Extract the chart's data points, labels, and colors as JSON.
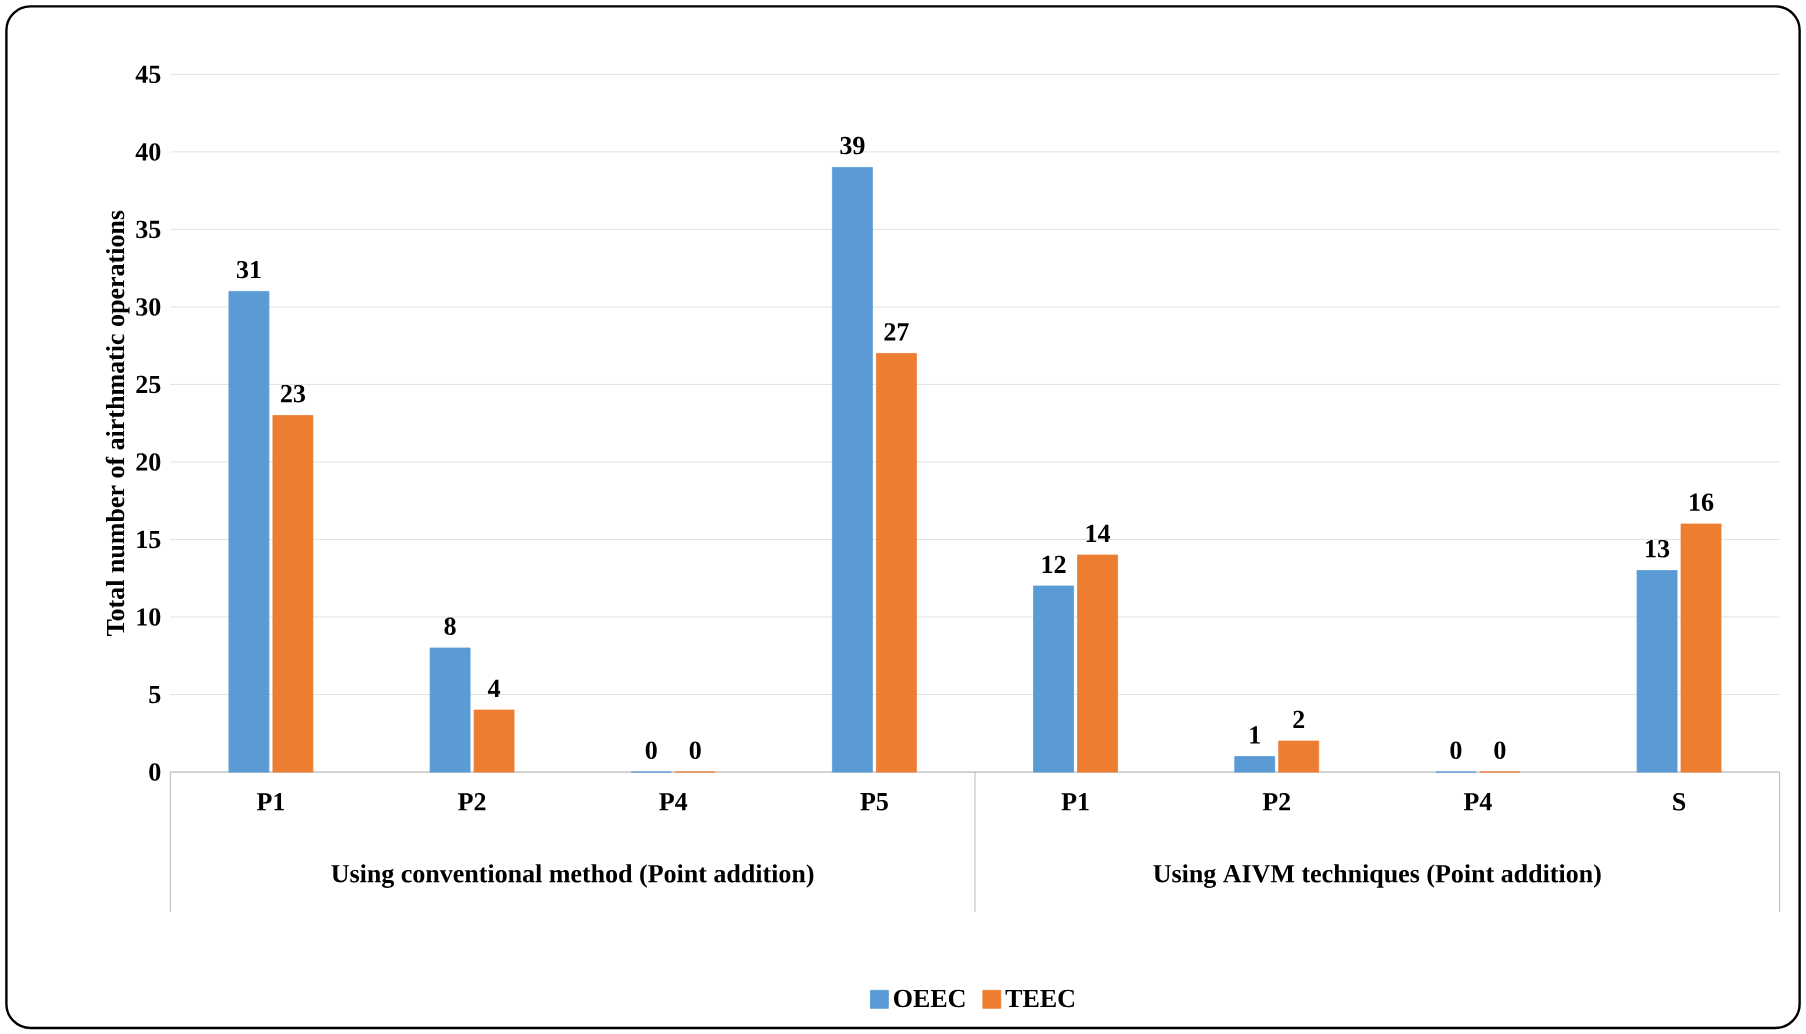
{
  "chart_data": {
    "type": "bar",
    "ylabel": "Total number of airthmatic operations",
    "categories": [
      "P1",
      "P2",
      "P4",
      "P5",
      "P1",
      "P2",
      "P4",
      "S"
    ],
    "annotations": [
      "Using conventional method (Point addition)",
      "Using AIVM techniques (Point addition)"
    ],
    "series": [
      {
        "name": "OEEC",
        "color": "#5b9bd5",
        "values": [
          31,
          8,
          0,
          39,
          12,
          1,
          0,
          13
        ]
      },
      {
        "name": "TEEC",
        "color": "#ed7d31",
        "values": [
          23,
          4,
          0,
          27,
          14,
          2,
          0,
          16
        ]
      }
    ],
    "ylim": [
      0,
      45
    ],
    "yticks": [
      0,
      5,
      10,
      15,
      20,
      25,
      30,
      35,
      40,
      45
    ],
    "grid": "y",
    "data_labels": true,
    "legend": "bottom"
  }
}
